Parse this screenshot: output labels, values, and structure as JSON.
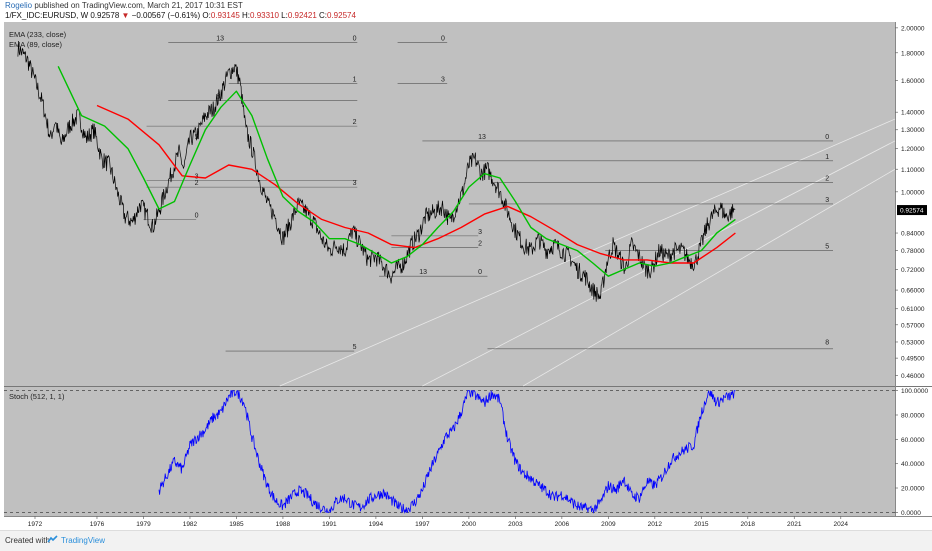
{
  "header": {
    "author": "Rogelio",
    "published": "published on TradingView.com, March 21, 2017 10:31 EST",
    "symbol": "1/FX_IDC:EURUSD, W",
    "last": "0.92578",
    "change": "−0.00567 (−0.61%)",
    "o_label": "O:",
    "o_value": "0.93145",
    "h_label": "H:",
    "h_value": "0.93310",
    "l_label": "L:",
    "l_value": "0.92421",
    "c_label": "C:",
    "c_value": "0.92574"
  },
  "footer": {
    "created_with": "Created with",
    "brand": "TradingView",
    "logo_icon": "tradingview-logo-icon"
  },
  "colors": {
    "plot_bg": "#c0c0c0",
    "price": "#000000",
    "ema233": "#ff0000",
    "ema89": "#00c000",
    "stoch": "#0000ff",
    "fib_line": "#555555",
    "last_badge": "#000000"
  },
  "chart_data": [
    {
      "type": "line",
      "title": "",
      "indicators_legend": [
        "EMA (233, close)",
        "EMA (89, close)"
      ],
      "y_scale": "log",
      "ylim": [
        0.44,
        2.05
      ],
      "xlim": [
        1970.0,
        2027.5
      ],
      "x_ticks": [
        "1972",
        "1976",
        "1979",
        "1982",
        "1985",
        "1988",
        "1991",
        "1994",
        "1997",
        "2000",
        "2003",
        "2006",
        "2009",
        "2012",
        "2015",
        "2018",
        "2021",
        "2024"
      ],
      "x_tick_values": [
        1972,
        1976,
        1979,
        1982,
        1985,
        1988,
        1991,
        1994,
        1997,
        2000,
        2003,
        2006,
        2009,
        2012,
        2015,
        2018,
        2021,
        2024
      ],
      "y_ticks": [
        "2.00000",
        "1.80000",
        "1.60000",
        "1.40000",
        "1.30000",
        "1.20000",
        "1.10000",
        "1.00000",
        "0.92574",
        "0.84000",
        "0.78000",
        "0.72000",
        "0.66000",
        "0.61000",
        "0.57000",
        "0.53000",
        "0.49500",
        "0.46000"
      ],
      "y_tick_values": [
        2.0,
        1.8,
        1.6,
        1.4,
        1.3,
        1.2,
        1.1,
        1.0,
        0.92574,
        0.84,
        0.78,
        0.72,
        0.66,
        0.61,
        0.57,
        0.53,
        0.495,
        0.46
      ],
      "last_price": 0.92574,
      "last_price_label": "0.92574",
      "series": [
        {
          "name": "1/FX_IDC:EURUSD",
          "x": [
            1970.9,
            1971.5,
            1972.0,
            1972.5,
            1973.0,
            1973.3,
            1973.7,
            1974.2,
            1974.8,
            1975.3,
            1975.8,
            1976.3,
            1976.8,
            1977.3,
            1977.8,
            1978.3,
            1978.8,
            1979.3,
            1979.6,
            1980.0,
            1980.4,
            1980.9,
            1981.3,
            1981.6,
            1982.0,
            1982.5,
            1983.0,
            1983.5,
            1984.0,
            1984.5,
            1984.9,
            1985.2,
            1985.6,
            1986.0,
            1986.5,
            1987.0,
            1987.5,
            1988.0,
            1988.5,
            1989.0,
            1989.5,
            1990.0,
            1990.5,
            1991.0,
            1991.5,
            1992.0,
            1992.5,
            1993.0,
            1993.5,
            1994.0,
            1994.5,
            1995.0,
            1995.3,
            1995.8,
            1996.3,
            1996.8,
            1997.2,
            1997.8,
            1998.3,
            1998.8,
            1999.2,
            1999.6,
            2000.0,
            2000.4,
            2000.8,
            2001.2,
            2001.6,
            2002.0,
            2002.5,
            2003.0,
            2003.5,
            2004.0,
            2004.5,
            2005.0,
            2005.5,
            2006.0,
            2006.5,
            2007.0,
            2007.5,
            2008.0,
            2008.5,
            2008.9,
            2009.3,
            2009.7,
            2010.1,
            2010.5,
            2011.0,
            2011.4,
            2011.8,
            2012.3,
            2012.8,
            2013.3,
            2013.8,
            2014.2,
            2014.6,
            2015.0,
            2015.4,
            2015.8,
            2016.2,
            2016.6,
            2017.0,
            2017.2
          ],
          "values": [
            1.84,
            1.75,
            1.6,
            1.45,
            1.25,
            1.35,
            1.22,
            1.32,
            1.38,
            1.25,
            1.3,
            1.15,
            1.12,
            1.0,
            0.9,
            0.88,
            0.95,
            0.9,
            0.86,
            0.92,
            1.0,
            1.1,
            1.18,
            1.1,
            1.25,
            1.28,
            1.38,
            1.42,
            1.52,
            1.65,
            1.7,
            1.6,
            1.3,
            1.2,
            1.05,
            0.95,
            0.9,
            0.82,
            0.88,
            0.95,
            0.92,
            0.88,
            0.82,
            0.78,
            0.8,
            0.78,
            0.85,
            0.8,
            0.75,
            0.76,
            0.73,
            0.7,
            0.72,
            0.74,
            0.8,
            0.84,
            0.9,
            0.92,
            0.94,
            0.88,
            0.94,
            1.0,
            1.12,
            1.15,
            1.08,
            1.1,
            1.05,
            1.0,
            0.92,
            0.85,
            0.8,
            0.78,
            0.82,
            0.78,
            0.8,
            0.78,
            0.76,
            0.72,
            0.7,
            0.66,
            0.64,
            0.74,
            0.8,
            0.76,
            0.72,
            0.8,
            0.76,
            0.72,
            0.72,
            0.78,
            0.76,
            0.78,
            0.78,
            0.75,
            0.74,
            0.8,
            0.87,
            0.91,
            0.94,
            0.9,
            0.92,
            0.93
          ]
        },
        {
          "name": "EMA (233, close)",
          "x": [
            1976.0,
            1978.0,
            1980.0,
            1981.5,
            1983.0,
            1984.5,
            1986.0,
            1987.5,
            1989.0,
            1990.5,
            1992.0,
            1993.5,
            1995.0,
            1996.5,
            1998.0,
            1999.5,
            2001.0,
            2002.5,
            2004.0,
            2005.5,
            2007.0,
            2008.5,
            2010.0,
            2011.5,
            2013.0,
            2014.5,
            2016.0,
            2017.2
          ],
          "values": [
            1.44,
            1.36,
            1.22,
            1.07,
            1.06,
            1.12,
            1.1,
            1.03,
            0.95,
            0.89,
            0.86,
            0.84,
            0.8,
            0.79,
            0.82,
            0.86,
            0.91,
            0.94,
            0.9,
            0.85,
            0.8,
            0.77,
            0.75,
            0.75,
            0.74,
            0.74,
            0.79,
            0.84
          ]
        },
        {
          "name": "EMA (89, close)",
          "x": [
            1973.5,
            1975.0,
            1976.5,
            1978.0,
            1979.0,
            1980.0,
            1981.0,
            1982.0,
            1983.0,
            1984.0,
            1985.0,
            1986.0,
            1987.0,
            1988.0,
            1989.0,
            1990.0,
            1991.0,
            1992.0,
            1993.0,
            1994.0,
            1995.0,
            1996.0,
            1997.0,
            1998.0,
            1999.0,
            2000.0,
            2001.0,
            2002.0,
            2003.0,
            2004.0,
            2005.0,
            2006.0,
            2007.0,
            2008.0,
            2009.0,
            2010.0,
            2011.0,
            2012.0,
            2013.0,
            2014.0,
            2015.0,
            2016.0,
            2017.2
          ],
          "values": [
            1.7,
            1.38,
            1.32,
            1.2,
            1.06,
            0.93,
            0.96,
            1.12,
            1.3,
            1.43,
            1.53,
            1.38,
            1.15,
            0.98,
            0.92,
            0.88,
            0.82,
            0.82,
            0.8,
            0.77,
            0.74,
            0.76,
            0.8,
            0.86,
            0.92,
            1.02,
            1.08,
            1.06,
            0.96,
            0.86,
            0.82,
            0.8,
            0.78,
            0.74,
            0.7,
            0.72,
            0.74,
            0.73,
            0.74,
            0.76,
            0.78,
            0.84,
            0.89
          ]
        }
      ],
      "annotations": [
        {
          "text": "13",
          "x": 1983.7,
          "y": 1.88
        },
        {
          "text": "0",
          "x": 1992.5,
          "y": 1.88
        },
        {
          "text": "0",
          "x": 1998.2,
          "y": 1.88
        },
        {
          "text": "8",
          "x": 1983.7,
          "y": 1.47
        },
        {
          "text": "1",
          "x": 1992.5,
          "y": 1.58
        },
        {
          "text": "3",
          "x": 1998.2,
          "y": 1.58
        },
        {
          "text": "5",
          "x": 1982.3,
          "y": 1.24
        },
        {
          "text": "2",
          "x": 1992.5,
          "y": 1.32
        },
        {
          "text": "3",
          "x": 1982.3,
          "y": 1.05
        },
        {
          "text": "2",
          "x": 1982.3,
          "y": 1.02
        },
        {
          "text": "3",
          "x": 1992.5,
          "y": 1.02
        },
        {
          "text": "0",
          "x": 1982.3,
          "y": 0.89
        },
        {
          "text": "13",
          "x": 2000.6,
          "y": 1.24
        },
        {
          "text": "0",
          "x": 2023.0,
          "y": 1.24
        },
        {
          "text": "1",
          "x": 2023.0,
          "y": 1.14
        },
        {
          "text": "2",
          "x": 2023.0,
          "y": 1.04
        },
        {
          "text": "3",
          "x": 2023.0,
          "y": 0.95
        },
        {
          "text": "3",
          "x": 2000.6,
          "y": 0.83
        },
        {
          "text": "2",
          "x": 2000.6,
          "y": 0.79
        },
        {
          "text": "13",
          "x": 1996.8,
          "y": 0.7
        },
        {
          "text": "0",
          "x": 2000.6,
          "y": 0.7
        },
        {
          "text": "5",
          "x": 2023.0,
          "y": 0.78
        },
        {
          "text": "5",
          "x": 1992.5,
          "y": 0.51
        },
        {
          "text": "8",
          "x": 2023.0,
          "y": 0.52
        }
      ]
    },
    {
      "type": "line",
      "title": "",
      "indicators_legend": [
        "Stoch (512, 1, 1)"
      ],
      "ylim": [
        -3,
        103
      ],
      "y_ticks": [
        "100.0000",
        "80.0000",
        "60.0000",
        "40.0000",
        "20.0000",
        "0.0000"
      ],
      "y_tick_values": [
        100,
        80,
        60,
        40,
        20,
        0
      ],
      "series": [
        {
          "name": "Stoch (512, 1, 1)",
          "x": [
            1980.0,
            1980.5,
            1981.0,
            1981.5,
            1982.0,
            1982.5,
            1983.0,
            1983.5,
            1984.0,
            1984.5,
            1985.0,
            1985.5,
            1986.0,
            1986.5,
            1987.0,
            1987.5,
            1988.0,
            1988.5,
            1989.0,
            1989.5,
            1990.0,
            1990.5,
            1991.0,
            1991.5,
            1992.0,
            1992.5,
            1993.0,
            1993.5,
            1994.0,
            1994.5,
            1995.0,
            1995.5,
            1996.0,
            1996.5,
            1997.0,
            1997.5,
            1998.0,
            1998.5,
            1999.0,
            1999.5,
            2000.0,
            2000.5,
            2001.0,
            2001.5,
            2002.0,
            2002.5,
            2003.0,
            2003.5,
            2004.0,
            2004.5,
            2005.0,
            2005.5,
            2006.0,
            2006.5,
            2007.0,
            2007.5,
            2008.0,
            2008.5,
            2009.0,
            2009.5,
            2010.0,
            2010.5,
            2011.0,
            2011.5,
            2012.0,
            2012.5,
            2013.0,
            2013.5,
            2014.0,
            2014.5,
            2015.0,
            2015.5,
            2016.0,
            2016.5,
            2017.0,
            2017.2
          ],
          "values": [
            18,
            30,
            42,
            35,
            55,
            62,
            68,
            78,
            82,
            95,
            100,
            90,
            62,
            40,
            22,
            10,
            5,
            12,
            18,
            15,
            8,
            4,
            1,
            10,
            12,
            6,
            4,
            10,
            14,
            16,
            10,
            4,
            2,
            8,
            18,
            35,
            48,
            62,
            68,
            82,
            100,
            95,
            90,
            98,
            92,
            60,
            42,
            32,
            28,
            22,
            18,
            12,
            15,
            10,
            5,
            3,
            2,
            8,
            22,
            18,
            28,
            14,
            12,
            25,
            22,
            30,
            42,
            48,
            52,
            55,
            82,
            100,
            90,
            94,
            96,
            100
          ]
        }
      ]
    }
  ]
}
